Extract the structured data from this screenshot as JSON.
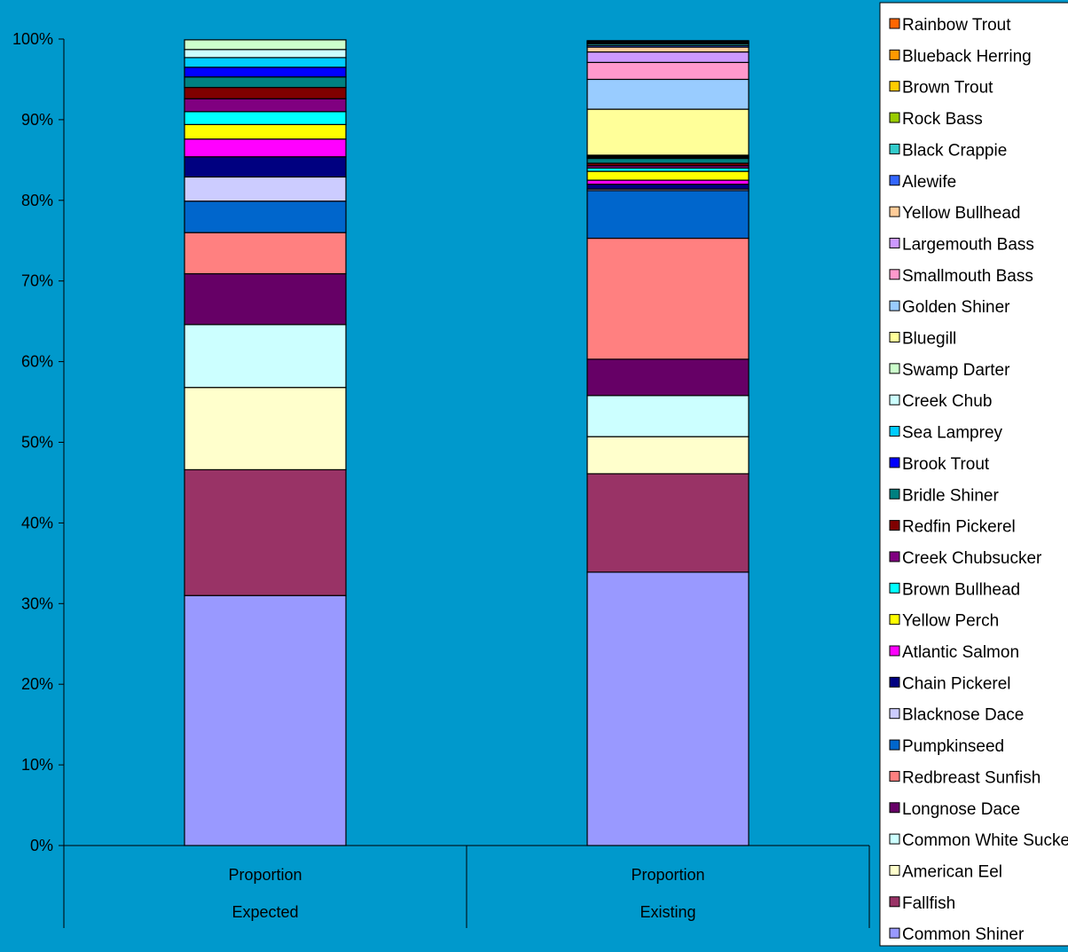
{
  "chart_data": {
    "type": "bar",
    "stacked": true,
    "percent": true,
    "categories": [
      {
        "top": "Proportion",
        "bottom": "Expected"
      },
      {
        "top": "Proportion",
        "bottom": "Existing"
      }
    ],
    "y_ticks": [
      "0%",
      "10%",
      "20%",
      "30%",
      "40%",
      "50%",
      "60%",
      "70%",
      "80%",
      "90%",
      "100%"
    ],
    "ylim": [
      0,
      100
    ],
    "grid": false,
    "legend_position": "right",
    "background": "#0099cc",
    "series": [
      {
        "name": "Common Shiner",
        "color": "#9999ff",
        "values": [
          31.0,
          33.9
        ]
      },
      {
        "name": "Fallfish",
        "color": "#993366",
        "values": [
          15.6,
          12.2
        ]
      },
      {
        "name": "American Eel",
        "color": "#ffffcc",
        "values": [
          10.2,
          4.6
        ]
      },
      {
        "name": "Common White Sucker",
        "color": "#ccffff",
        "values": [
          7.8,
          5.1
        ]
      },
      {
        "name": "Longnose Dace",
        "color": "#660066",
        "values": [
          6.3,
          4.5
        ]
      },
      {
        "name": "Redbreast Sunfish",
        "color": "#ff8080",
        "values": [
          5.1,
          15.0
        ]
      },
      {
        "name": "Pumpkinseed",
        "color": "#0066cc",
        "values": [
          3.9,
          5.9
        ]
      },
      {
        "name": "Blacknose Dace",
        "color": "#ccccff",
        "values": [
          3.0,
          0.2
        ]
      },
      {
        "name": "Chain Pickerel",
        "color": "#000080",
        "values": [
          2.5,
          0.6
        ]
      },
      {
        "name": "Atlantic Salmon",
        "color": "#ff00ff",
        "values": [
          2.2,
          0.5
        ]
      },
      {
        "name": "Yellow Perch",
        "color": "#ffff00",
        "values": [
          1.8,
          1.1
        ]
      },
      {
        "name": "Brown Bullhead",
        "color": "#00ffff",
        "values": [
          1.6,
          0.4
        ]
      },
      {
        "name": "Creek Chubsucker",
        "color": "#800080",
        "values": [
          1.6,
          0.3
        ]
      },
      {
        "name": "Redfin Pickerel",
        "color": "#800000",
        "values": [
          1.4,
          0.3
        ]
      },
      {
        "name": "Bridle Shiner",
        "color": "#008080",
        "values": [
          1.3,
          0.6
        ]
      },
      {
        "name": "Brook Trout",
        "color": "#0000ff",
        "values": [
          1.2,
          0.1
        ]
      },
      {
        "name": "Sea Lamprey",
        "color": "#00ccff",
        "values": [
          1.2,
          0.1
        ]
      },
      {
        "name": "Creek Chub",
        "color": "#ccffff",
        "values": [
          1.0,
          0.1
        ]
      },
      {
        "name": "Swamp Darter",
        "color": "#ccffcc",
        "values": [
          1.2,
          0.1
        ]
      },
      {
        "name": "Bluegill",
        "color": "#ffff99",
        "values": [
          0.0,
          5.7
        ]
      },
      {
        "name": "Golden Shiner",
        "color": "#99ccff",
        "values": [
          0.0,
          3.7
        ]
      },
      {
        "name": "Smallmouth Bass",
        "color": "#ff99cc",
        "values": [
          0.0,
          2.1
        ]
      },
      {
        "name": "Largemouth Bass",
        "color": "#cc99ff",
        "values": [
          0.0,
          1.3
        ]
      },
      {
        "name": "Yellow Bullhead",
        "color": "#ffcc99",
        "values": [
          0.0,
          0.6
        ]
      },
      {
        "name": "Alewife",
        "color": "#3366ff",
        "values": [
          0.0,
          0.2
        ]
      },
      {
        "name": "Black Crappie",
        "color": "#33cccc",
        "values": [
          0.0,
          0.2
        ]
      },
      {
        "name": "Rock Bass",
        "color": "#99cc00",
        "values": [
          0.0,
          0.1
        ]
      },
      {
        "name": "Brown Trout",
        "color": "#ffcc00",
        "values": [
          0.0,
          0.1
        ]
      },
      {
        "name": "Blueback Herring",
        "color": "#ff9900",
        "values": [
          0.0,
          0.1
        ]
      },
      {
        "name": "Rainbow Trout",
        "color": "#ff6600",
        "values": [
          0.0,
          0.1
        ]
      }
    ]
  }
}
